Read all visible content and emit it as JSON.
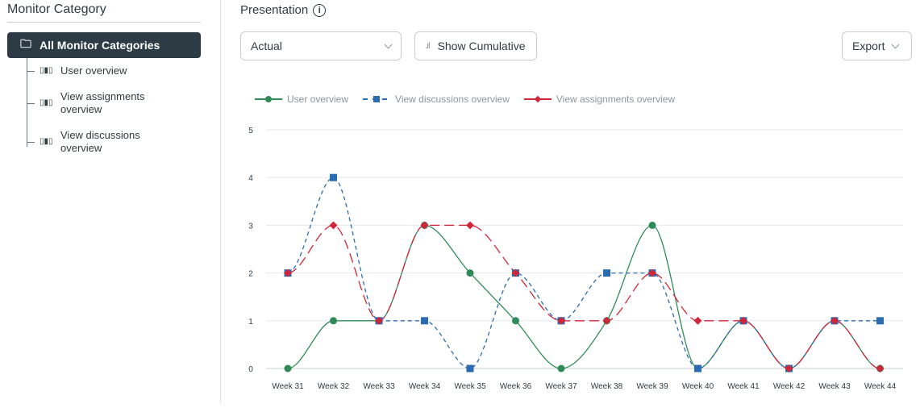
{
  "sidebar": {
    "title": "Monitor Category",
    "all_label": "All Monitor Categories",
    "items": [
      {
        "label": "User overview"
      },
      {
        "label": "View assignments overview"
      },
      {
        "label": "View discussions overview"
      }
    ]
  },
  "header": {
    "title": "Presentation",
    "dropdown_value": "Actual",
    "cumulative_label": "Show Cumulative",
    "export_label": "Export"
  },
  "chart_data": {
    "type": "line",
    "categories": [
      "Week 31",
      "Week 32",
      "Week 33",
      "Week 34",
      "Week 35",
      "Week 36",
      "Week 37",
      "Week 38",
      "Week 39",
      "Week 40",
      "Week 41",
      "Week 42",
      "Week 43",
      "Week 44"
    ],
    "ylim": [
      0,
      5
    ],
    "yticks": [
      0,
      1,
      2,
      3,
      4,
      5
    ],
    "grid": true,
    "legend": "top-left",
    "series": [
      {
        "name": "User overview",
        "color": "#2e8b57",
        "marker": "circle",
        "dash": "solid",
        "values": [
          0,
          1,
          1,
          3,
          2,
          1,
          0,
          1,
          3,
          0,
          1,
          0,
          1,
          0
        ]
      },
      {
        "name": "View discussions overview",
        "color": "#2b6cb0",
        "marker": "square",
        "dash": "short-dash",
        "values": [
          2,
          4,
          1,
          1,
          0,
          2,
          1,
          2,
          2,
          0,
          1,
          0,
          1,
          1
        ]
      },
      {
        "name": "View assignments overview",
        "color": "#d0263a",
        "marker": "diamond",
        "dash": "long-dash",
        "values": [
          2,
          3,
          1,
          3,
          3,
          2,
          1,
          1,
          2,
          1,
          1,
          0,
          1,
          0
        ]
      }
    ]
  }
}
